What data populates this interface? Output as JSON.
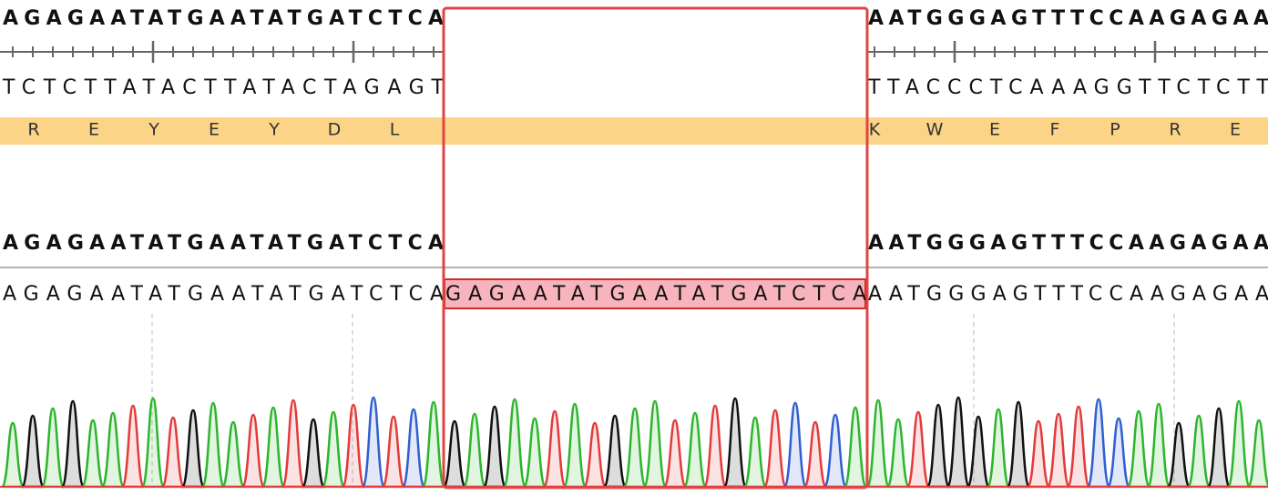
{
  "reference": {
    "left": "AGAGAATATGAATATGATCTCA",
    "right": "AATGGGAGTTTCCAAGAGAA"
  },
  "complement": {
    "left": "TCTCTTATACTTATACTAGAGT",
    "right": "TTACCCTCAAAGGTTCTCTT"
  },
  "translation": {
    "left": [
      "R",
      "E",
      "Y",
      "E",
      "Y",
      "D",
      "L"
    ],
    "right": [
      "K",
      "W",
      "E",
      "F",
      "P",
      "R",
      "E"
    ]
  },
  "alignment_reference": {
    "left": "AGAGAATATGAATATGATCTCA",
    "right": "AATGGGAGTTTCCAAGAGAA"
  },
  "read": {
    "left": "AGAGAATATGAATATGATCTCA",
    "insertion": "GAGAATATGAATATGATCTCA",
    "right": "AATGGGAGTTTCCAAGAGAA"
  }
}
